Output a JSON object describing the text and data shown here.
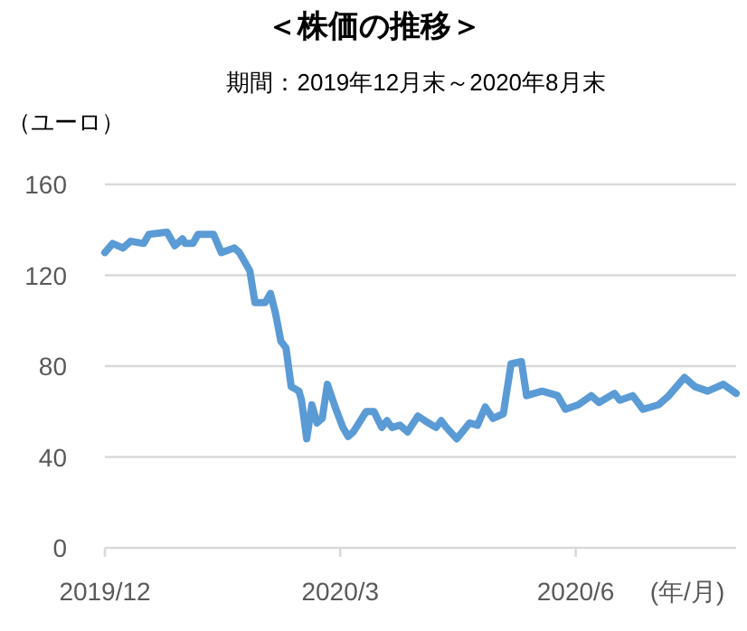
{
  "chart_data": {
    "type": "line",
    "title": "＜株価の推移＞",
    "subtitle": "期間：2019年12月末～2020年8月末",
    "ylabel": "（ユーロ）",
    "xlabel": "(年/月)",
    "x": [
      "2019-12-31",
      "2020-01-03",
      "2020-01-07",
      "2020-01-10",
      "2020-01-15",
      "2020-01-17",
      "2020-01-24",
      "2020-01-27",
      "2020-01-30",
      "2020-01-31",
      "2020-02-03",
      "2020-02-05",
      "2020-02-11",
      "2020-02-14",
      "2020-02-19",
      "2020-02-21",
      "2020-02-25",
      "2020-02-27",
      "2020-03-02",
      "2020-03-04",
      "2020-03-06",
      "2020-03-08",
      "2020-03-10",
      "2020-03-12",
      "2020-03-15",
      "2020-03-16",
      "2020-03-18",
      "2020-03-20",
      "2020-03-22",
      "2020-03-24",
      "2020-03-26",
      "2020-03-29",
      "2020-04-01",
      "2020-04-03",
      "2020-04-05",
      "2020-04-10",
      "2020-04-13",
      "2020-04-16",
      "2020-04-18",
      "2020-04-20",
      "2020-04-23",
      "2020-04-26",
      "2020-04-30",
      "2020-05-04",
      "2020-05-07",
      "2020-05-09",
      "2020-05-11",
      "2020-05-15",
      "2020-05-20",
      "2020-05-23",
      "2020-05-26",
      "2020-05-29",
      "2020-06-02",
      "2020-06-05",
      "2020-06-09",
      "2020-06-11",
      "2020-06-17",
      "2020-06-23",
      "2020-06-26",
      "2020-07-01",
      "2020-07-06",
      "2020-07-09",
      "2020-07-15",
      "2020-07-17",
      "2020-07-22",
      "2020-07-26",
      "2020-08-01",
      "2020-08-05",
      "2020-08-11",
      "2020-08-15",
      "2020-08-20",
      "2020-08-26",
      "2020-08-31"
    ],
    "series": [
      {
        "color": "#5b9bd5",
        "values": [
          130,
          134,
          132,
          135,
          134,
          138,
          139,
          133,
          136,
          134,
          134,
          138,
          138,
          130,
          132,
          130,
          122,
          108,
          108,
          112,
          103,
          91,
          88,
          71,
          69,
          65,
          48,
          63,
          55,
          57,
          72,
          62,
          53,
          49,
          51,
          60,
          60,
          53,
          56,
          53,
          54,
          51,
          58,
          55,
          53,
          56,
          53,
          48,
          55,
          54,
          62,
          57,
          59,
          81,
          82,
          67,
          69,
          67,
          61,
          63,
          67,
          64,
          68,
          65,
          67,
          61,
          63,
          67,
          75,
          71,
          69,
          72,
          68
        ]
      }
    ],
    "xlim": [
      "2019-12-31",
      "2020-08-31"
    ],
    "xticks": [
      {
        "value": "2019-12-31",
        "label": "2019/12"
      },
      {
        "value": "2020-03-31",
        "label": "2020/3"
      },
      {
        "value": "2020-06-30",
        "label": "2020/6"
      }
    ],
    "ylim": [
      0,
      160
    ],
    "yticks": [
      0,
      40,
      80,
      120,
      160
    ],
    "grid": "y",
    "marker": "none",
    "line_style": "solid"
  }
}
